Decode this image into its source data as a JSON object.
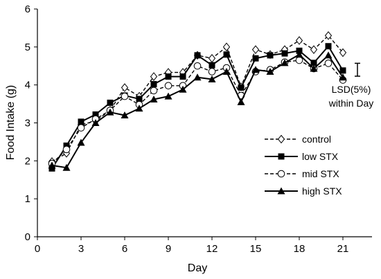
{
  "chart_data": {
    "type": "line",
    "xlabel": "Day",
    "ylabel": "Food Intake (g)",
    "xlim": [
      0,
      23
    ],
    "ylim": [
      0,
      6
    ],
    "xticks": [
      0,
      3,
      6,
      9,
      12,
      15,
      18,
      21
    ],
    "yticks": [
      0,
      1,
      2,
      3,
      4,
      5,
      6
    ],
    "grid": false,
    "legend_position": "lower-right",
    "x": [
      1,
      2,
      3,
      4,
      5,
      6,
      7,
      8,
      9,
      10,
      11,
      12,
      13,
      14,
      15,
      16,
      17,
      18,
      19,
      20,
      21
    ],
    "series": [
      {
        "name": "control",
        "line": "dashed",
        "marker": "diamond-open",
        "values": [
          1.98,
          2.2,
          2.95,
          3.05,
          3.33,
          3.93,
          3.7,
          4.22,
          4.33,
          4.33,
          4.78,
          4.7,
          5.0,
          3.95,
          4.93,
          4.8,
          4.93,
          5.17,
          4.93,
          5.3,
          4.85
        ]
      },
      {
        "name": "low STX",
        "line": "solid",
        "marker": "square-filled",
        "values": [
          1.8,
          2.4,
          3.03,
          3.22,
          3.53,
          3.72,
          3.63,
          4.02,
          4.22,
          4.22,
          4.78,
          4.52,
          4.8,
          3.93,
          4.7,
          4.78,
          4.83,
          4.9,
          4.58,
          5.02,
          4.38
        ]
      },
      {
        "name": "mid STX",
        "line": "dashed",
        "marker": "circle-open",
        "values": [
          1.93,
          2.3,
          2.87,
          3.1,
          3.33,
          3.7,
          3.48,
          3.85,
          3.98,
          3.98,
          4.5,
          4.35,
          4.45,
          3.72,
          4.35,
          4.4,
          4.6,
          4.65,
          4.43,
          4.57,
          4.13
        ]
      },
      {
        "name": "high STX",
        "line": "solid",
        "marker": "triangle-filled",
        "values": [
          1.88,
          1.82,
          2.48,
          3.0,
          3.28,
          3.2,
          3.38,
          3.62,
          3.7,
          3.88,
          4.2,
          4.15,
          4.35,
          3.55,
          4.4,
          4.35,
          4.58,
          4.8,
          4.43,
          4.78,
          4.2
        ]
      }
    ],
    "error_bar": {
      "x": 22,
      "center": 4.4,
      "half_range": 0.17,
      "label_line1": "LSD(5%)",
      "label_line2": "within Day"
    }
  }
}
